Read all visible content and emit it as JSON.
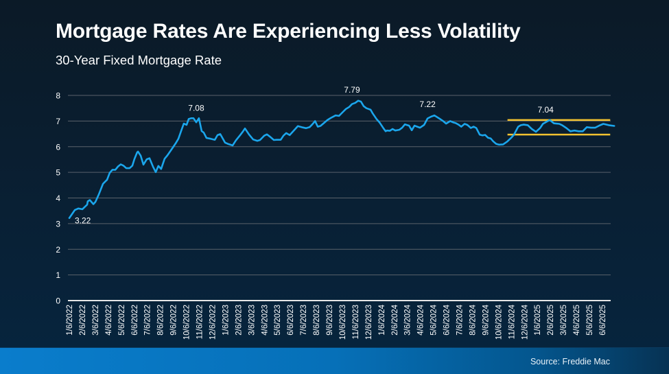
{
  "title": "Mortgage Rates Are Experiencing Less Volatility",
  "subtitle": "30-Year Fixed Mortgage Rate",
  "source": "Source: Freddie Mac",
  "colors": {
    "line": "#1ba6ec",
    "band": "#f2c230",
    "grid": "#5a626b",
    "axis": "#e6e6e6",
    "text": "#ffffff"
  },
  "chart_data": {
    "type": "line",
    "title": "Mortgage Rates Are Experiencing Less Volatility",
    "subtitle": "30-Year Fixed Mortgage Rate",
    "xlabel": "",
    "ylabel": "",
    "ylim": [
      0,
      8
    ],
    "yticks": [
      0,
      1,
      2,
      3,
      4,
      5,
      6,
      7,
      8
    ],
    "grid": true,
    "legend": "none",
    "xtick_labels": [
      "1/6/2022",
      "2/6/2022",
      "3/6/2022",
      "4/6/2022",
      "5/6/2022",
      "6/6/2022",
      "7/6/2022",
      "8/6/2022",
      "9/6/2022",
      "10/6/2022",
      "11/6/2022",
      "12/6/2022",
      "1/6/2023",
      "2/6/2023",
      "3/6/2023",
      "4/6/2023",
      "5/6/2023",
      "6/6/2023",
      "7/6/2023",
      "8/6/2023",
      "9/6/2023",
      "10/6/2023",
      "11/6/2023",
      "12/6/2023",
      "1/6/2024",
      "2/6/2024",
      "3/6/2024",
      "4/6/2024",
      "5/6/2024",
      "6/6/2024",
      "7/6/2024",
      "8/6/2024",
      "9/6/2024",
      "10/6/2024",
      "11/6/2024",
      "12/6/2024",
      "1/6/2025",
      "2/6/2025",
      "3/6/2025",
      "4/6/2025",
      "5/6/2025",
      "6/6/2025"
    ],
    "series": [
      {
        "name": "30-Year Fixed Mortgage Rate",
        "x_month_index": [
          0,
          0.42,
          0.69,
          1.0,
          1.37,
          1.42,
          1.58,
          1.85,
          2.01,
          2.27,
          2.59,
          2.8,
          2.9,
          3.11,
          3.32,
          3.54,
          3.75,
          3.96,
          4.17,
          4.38,
          4.64,
          4.85,
          5.01,
          5.22,
          5.28,
          5.49,
          5.7,
          5.96,
          6.17,
          6.44,
          6.65,
          6.85,
          7.06,
          7.33,
          7.54,
          7.86,
          8.18,
          8.39,
          8.65,
          8.81,
          9.02,
          9.18,
          9.39,
          9.55,
          9.76,
          9.97,
          10.18,
          10.34,
          10.55,
          10.87,
          11.19,
          11.4,
          11.61,
          11.98,
          12.19,
          12.56,
          12.82,
          13.14,
          13.35,
          13.51,
          13.83,
          14.14,
          14.46,
          14.67,
          14.99,
          15.2,
          15.41,
          15.73,
          15.94,
          16.26,
          16.47,
          16.68,
          16.95,
          17.58,
          17.95,
          18.21,
          18.48,
          18.69,
          18.9,
          19.11,
          19.32,
          19.53,
          19.85,
          20.11,
          20.48,
          20.74,
          21.0,
          21.27,
          21.53,
          21.74,
          22.0,
          22.21,
          22.43,
          22.64,
          22.85,
          23.17,
          23.33,
          23.64,
          23.85,
          24.17,
          24.33,
          24.43,
          24.65,
          24.86,
          25.07,
          25.39,
          25.6,
          25.81,
          26.13,
          26.34,
          26.55,
          26.97,
          27.29,
          27.55,
          27.82,
          28.08,
          28.45,
          28.77,
          28.98,
          29.3,
          29.51,
          29.72,
          29.93,
          30.14,
          30.4,
          30.61,
          30.88,
          31.09,
          31.3,
          31.56,
          31.77,
          31.98,
          32.2,
          32.41,
          32.62,
          32.83,
          33.04,
          33.36,
          33.68,
          33.99,
          34.2,
          34.52,
          34.73,
          34.94,
          35.26,
          35.57,
          35.89,
          36.21,
          36.42,
          36.63,
          36.95,
          37.27,
          37.69,
          37.9,
          38.22,
          38.54,
          38.85,
          39.17,
          39.49,
          39.8,
          40.12,
          40.44,
          40.75,
          41.07,
          41.49,
          41.91
        ],
        "values": [
          3.22,
          3.53,
          3.59,
          3.56,
          3.74,
          3.87,
          3.92,
          3.76,
          3.85,
          4.14,
          4.55,
          4.66,
          4.71,
          4.98,
          5.1,
          5.1,
          5.23,
          5.31,
          5.26,
          5.16,
          5.16,
          5.26,
          5.52,
          5.78,
          5.81,
          5.65,
          5.3,
          5.51,
          5.55,
          5.22,
          5.01,
          5.25,
          5.13,
          5.53,
          5.66,
          5.89,
          6.13,
          6.31,
          6.68,
          6.9,
          6.85,
          7.08,
          7.11,
          7.11,
          6.95,
          7.11,
          6.61,
          6.55,
          6.34,
          6.31,
          6.27,
          6.45,
          6.49,
          6.16,
          6.11,
          6.05,
          6.25,
          6.45,
          6.59,
          6.71,
          6.47,
          6.28,
          6.23,
          6.26,
          6.43,
          6.48,
          6.4,
          6.26,
          6.27,
          6.27,
          6.43,
          6.53,
          6.45,
          6.8,
          6.75,
          6.72,
          6.76,
          6.87,
          7.0,
          6.78,
          6.81,
          6.9,
          7.04,
          7.12,
          7.22,
          7.2,
          7.33,
          7.47,
          7.55,
          7.66,
          7.71,
          7.79,
          7.76,
          7.58,
          7.5,
          7.44,
          7.3,
          7.07,
          6.95,
          6.71,
          6.6,
          6.63,
          6.62,
          6.69,
          6.63,
          6.66,
          6.74,
          6.87,
          6.82,
          6.64,
          6.82,
          6.74,
          6.85,
          7.1,
          7.17,
          7.22,
          7.1,
          6.99,
          6.9,
          7.0,
          6.95,
          6.92,
          6.86,
          6.78,
          6.89,
          6.85,
          6.73,
          6.78,
          6.73,
          6.47,
          6.44,
          6.46,
          6.35,
          6.32,
          6.2,
          6.11,
          6.08,
          6.09,
          6.2,
          6.35,
          6.47,
          6.78,
          6.84,
          6.86,
          6.84,
          6.69,
          6.58,
          6.73,
          6.89,
          6.95,
          7.04,
          6.91,
          6.89,
          6.84,
          6.73,
          6.6,
          6.63,
          6.6,
          6.6,
          6.76,
          6.74,
          6.74,
          6.82,
          6.89,
          6.84,
          6.81,
          6.77
        ]
      }
    ],
    "annotations": [
      {
        "text": "3.22",
        "x_month_index": 0,
        "value": 3.22
      },
      {
        "text": "7.08",
        "x_month_index": 9.76,
        "value": 7.08
      },
      {
        "text": "7.79",
        "x_month_index": 21.74,
        "value": 7.79
      },
      {
        "text": "7.22",
        "x_month_index": 27.55,
        "value": 7.22
      },
      {
        "text": "7.04",
        "x_month_index": 36.63,
        "value": 7.04
      }
    ],
    "reference_band": {
      "upper": 7.04,
      "lower": 6.47,
      "x_month_start": 33.7,
      "x_month_end": 41.6
    }
  }
}
